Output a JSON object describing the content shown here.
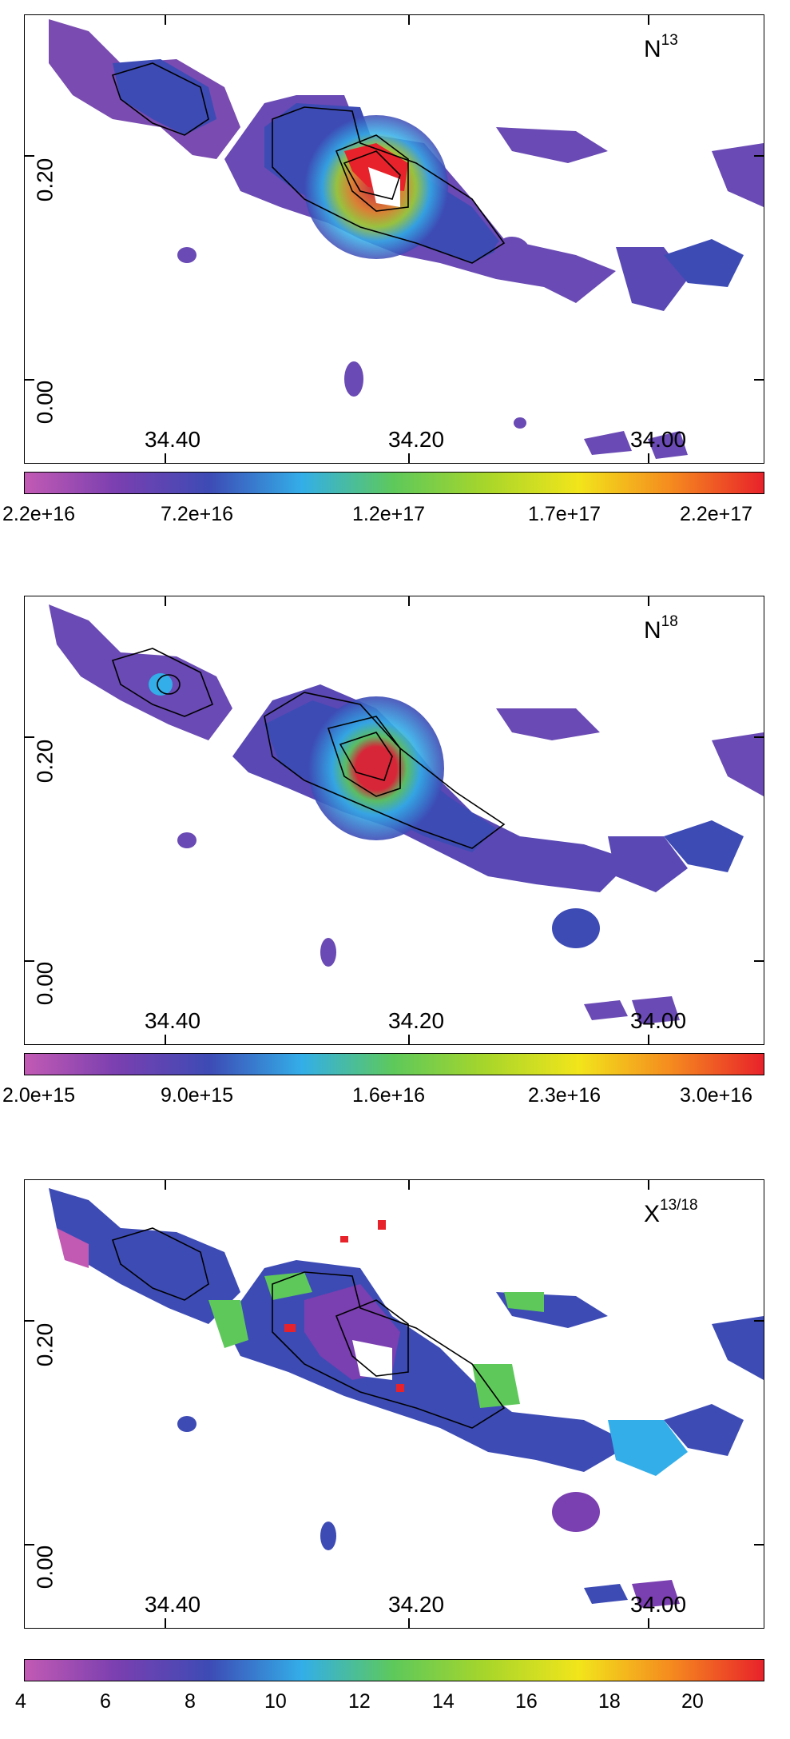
{
  "chart_data": [
    {
      "type": "heatmap",
      "title": "N13",
      "label_main": "N",
      "label_sup": "13",
      "x_tick_labels": [
        "34.40",
        "34.20",
        "34.00"
      ],
      "y_tick_labels": [
        "0.20",
        "0.00"
      ],
      "colorbar_tick_labels": [
        "2.2e+16",
        "7.2e+16",
        "1.2e+17",
        "1.7e+17",
        "2.2e+17"
      ],
      "colorbar_range": [
        2.2e+16,
        2.2e+17
      ],
      "colormap": [
        "#c25ab4",
        "#7a3fb0",
        "#3d4bb5",
        "#33aee8",
        "#5ec95a",
        "#a8d62a",
        "#f2e51b",
        "#f58a1f",
        "#e8222a"
      ]
    },
    {
      "type": "heatmap",
      "title": "N18",
      "label_main": "N",
      "label_sup": "18",
      "x_tick_labels": [
        "34.40",
        "34.20",
        "34.00"
      ],
      "y_tick_labels": [
        "0.20",
        "0.00"
      ],
      "colorbar_tick_labels": [
        "2.0e+15",
        "9.0e+15",
        "1.6e+16",
        "2.3e+16",
        "3.0e+16"
      ],
      "colorbar_range": [
        2000000000000000.0,
        3e+16
      ],
      "colormap": [
        "#c25ab4",
        "#7a3fb0",
        "#3d4bb5",
        "#33aee8",
        "#5ec95a",
        "#a8d62a",
        "#f2e51b",
        "#f58a1f",
        "#e8222a"
      ]
    },
    {
      "type": "heatmap",
      "title": "X13/18",
      "label_main": "X",
      "label_sup": "13/18",
      "x_tick_labels": [
        "34.40",
        "34.20",
        "34.00"
      ],
      "y_tick_labels": [
        "0.20",
        "0.00"
      ],
      "colorbar_tick_labels": [
        "4",
        "6",
        "8",
        "10",
        "12",
        "14",
        "16",
        "18",
        "20"
      ],
      "colorbar_range": [
        4,
        21.5
      ],
      "colormap": [
        "#c25ab4",
        "#7a3fb0",
        "#3d4bb5",
        "#33aee8",
        "#5ec95a",
        "#a8d62a",
        "#f2e51b",
        "#f58a1f",
        "#e8222a"
      ]
    }
  ]
}
